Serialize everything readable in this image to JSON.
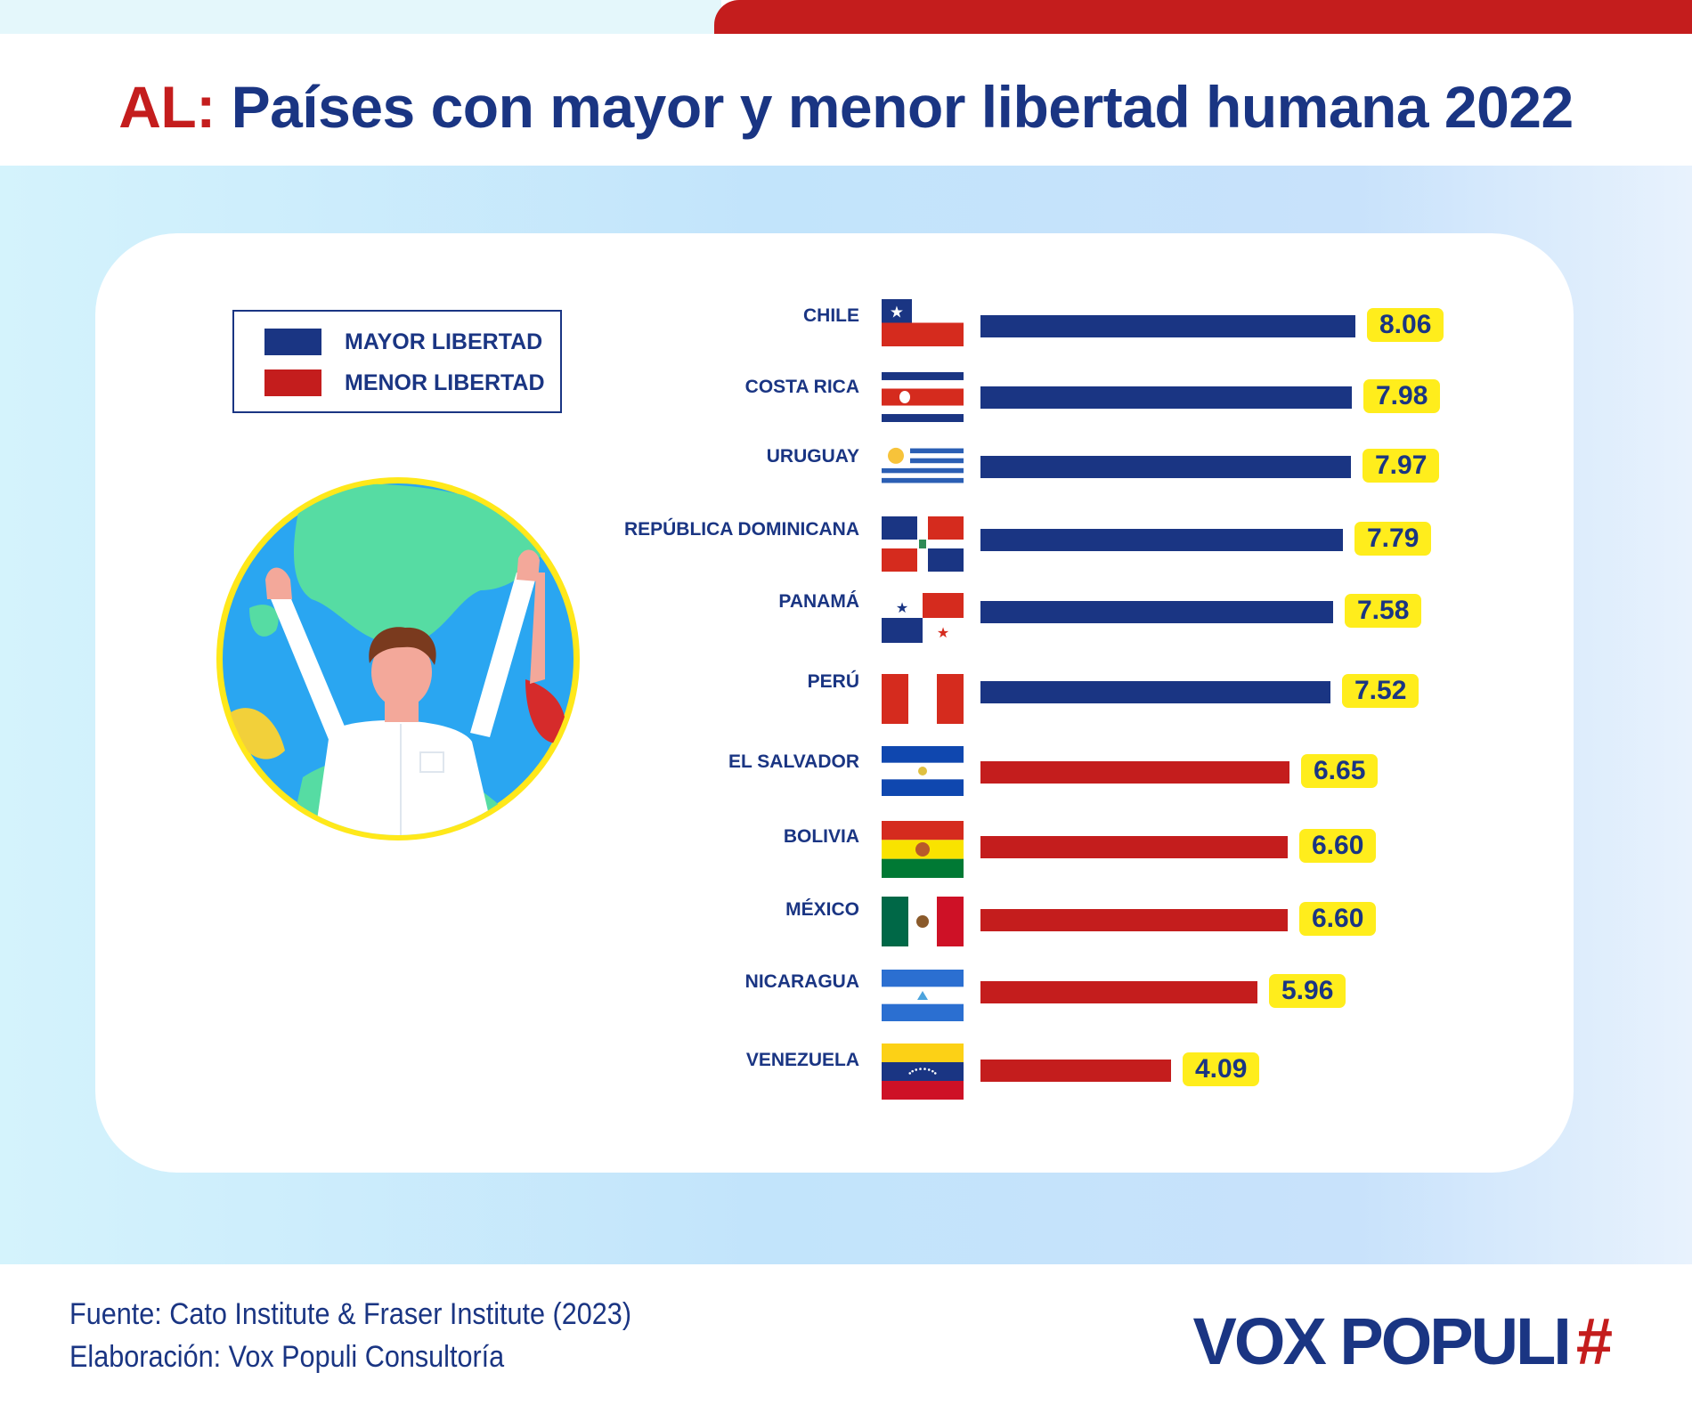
{
  "title": {
    "prefix": "AL:",
    "text": "Países con mayor y menor libertad humana 2022"
  },
  "legend": {
    "items": [
      {
        "label": "MAYOR LIBERTAD",
        "color": "#1a3583"
      },
      {
        "label": "MENOR LIBERTAD",
        "color": "#c41d1d"
      }
    ]
  },
  "colors": {
    "mayor": "#1a3583",
    "menor": "#c41d1d",
    "value_bg": "#ffed1c"
  },
  "chart_data": {
    "type": "bar",
    "orientation": "horizontal",
    "title": "AL: Países con mayor y menor libertad humana 2022",
    "categories": [
      "CHILE",
      "COSTA RICA",
      "URUGUAY",
      "REPÚBLICA DOMINICANA",
      "PANAMÁ",
      "PERÚ",
      "EL SALVADOR",
      "BOLIVIA",
      "MÉXICO",
      "NICARAGUA",
      "VENEZUELA"
    ],
    "values": [
      8.06,
      7.98,
      7.97,
      7.79,
      7.58,
      7.52,
      6.65,
      6.6,
      6.6,
      5.96,
      4.09
    ],
    "value_labels": [
      "8.06",
      "7.98",
      "7.97",
      "7.79",
      "7.58",
      "7.52",
      "6.65",
      "6.60",
      "6.60",
      "5.96",
      "4.09"
    ],
    "groups": [
      "mayor",
      "mayor",
      "mayor",
      "mayor",
      "mayor",
      "mayor",
      "menor",
      "menor",
      "menor",
      "menor",
      "menor"
    ],
    "flags": [
      "chile-flag-icon",
      "costa-rica-flag-icon",
      "uruguay-flag-icon",
      "dominican-republic-flag-icon",
      "panama-flag-icon",
      "peru-flag-icon",
      "el-salvador-flag-icon",
      "bolivia-flag-icon",
      "mexico-flag-icon",
      "nicaragua-flag-icon",
      "venezuela-flag-icon"
    ],
    "xlim": [
      0,
      8.06
    ],
    "xlabel": "",
    "ylabel": ""
  },
  "footer": {
    "source": "Fuente:  Cato Institute & Fraser Institute (2023)",
    "credit": "Elaboración: Vox Populi Consultoría",
    "logo_text": "VOX POPULI",
    "logo_mark": "#"
  }
}
